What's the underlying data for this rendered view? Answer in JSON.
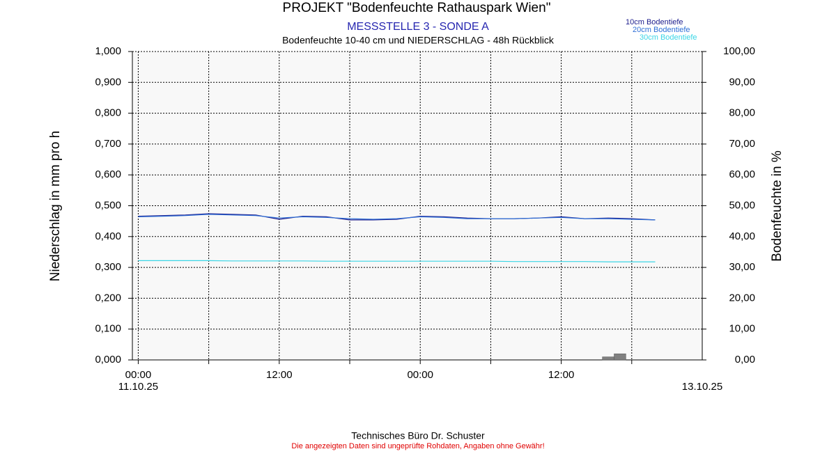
{
  "chart_data": {
    "type": "line",
    "title": "PROJEKT \"Bodenfeuchte Rathauspark Wien\"",
    "subtitle": "MESSSTELLE 3 - SONDE A",
    "description": "Bodenfeuchte 10-40 cm und NIEDERSCHLAG - 48h Rückblick",
    "ylabel": "Niederschlag in mm pro h",
    "y2label": "Bodenfeuchte in %",
    "footer": "Technisches Büro Dr. Schuster",
    "disclaimer": "Die angezeigten Daten sind ungeprüfte Rohdaten, Angaben ohne Gewähr!",
    "xlim": [
      -0.5,
      48
    ],
    "xticks": [
      {
        "value": 0,
        "label": "00:00"
      },
      {
        "value": 12,
        "label": "12:00"
      },
      {
        "value": 24,
        "label": "00:00"
      },
      {
        "value": 36,
        "label": "12:00"
      }
    ],
    "xminor": [
      6,
      18,
      30,
      42
    ],
    "date_labels": [
      {
        "value": 0,
        "label": "11.10.25"
      },
      {
        "value": 48,
        "label": "13.10.25"
      }
    ],
    "ylim": [
      0,
      1
    ],
    "yticks": [
      {
        "value": 0,
        "label": "0,000"
      },
      {
        "value": 0.1,
        "label": "0,100"
      },
      {
        "value": 0.2,
        "label": "0,200"
      },
      {
        "value": 0.3,
        "label": "0,300"
      },
      {
        "value": 0.4,
        "label": "0,400"
      },
      {
        "value": 0.5,
        "label": "0,500"
      },
      {
        "value": 0.6,
        "label": "0,600"
      },
      {
        "value": 0.7,
        "label": "0,700"
      },
      {
        "value": 0.8,
        "label": "0,800"
      },
      {
        "value": 0.9,
        "label": "0,900"
      },
      {
        "value": 1,
        "label": "1,000"
      }
    ],
    "y2lim": [
      0,
      100
    ],
    "y2ticks": [
      {
        "value": 0,
        "label": "0,00"
      },
      {
        "value": 10,
        "label": "10,00"
      },
      {
        "value": 20,
        "label": "20,00"
      },
      {
        "value": 30,
        "label": "30,00"
      },
      {
        "value": 40,
        "label": "40,00"
      },
      {
        "value": 50,
        "label": "50,00"
      },
      {
        "value": 60,
        "label": "60,00"
      },
      {
        "value": 70,
        "label": "70,00"
      },
      {
        "value": 80,
        "label": "80,00"
      },
      {
        "value": 90,
        "label": "90,00"
      },
      {
        "value": 100,
        "label": "100,00"
      }
    ],
    "grid": true,
    "legend": "top-right",
    "x": [
      0,
      2,
      4,
      6,
      8,
      10,
      12,
      14,
      16,
      18,
      20,
      22,
      24,
      26,
      28,
      30,
      32,
      34,
      36,
      38,
      40,
      42,
      44
    ],
    "series": [
      {
        "name": "10cm Bodentiefe",
        "color": "#1c1c8c",
        "axis": "y2",
        "values": [
          46.6,
          46.8,
          47.0,
          47.4,
          47.2,
          47.0,
          45.6,
          46.6,
          46.4,
          45.4,
          45.4,
          45.6,
          46.6,
          46.4,
          46.0,
          45.8,
          45.8,
          46.0,
          46.4,
          45.8,
          46.0,
          45.8,
          45.4
        ]
      },
      {
        "name": "20cm Bodentiefe",
        "color": "#2f6fd6",
        "axis": "y2",
        "values": [
          46.4,
          46.6,
          46.8,
          47.2,
          47.0,
          46.8,
          46.0,
          46.4,
          46.2,
          45.8,
          45.6,
          45.8,
          46.4,
          46.2,
          45.8,
          45.8,
          45.8,
          46.0,
          46.2,
          45.8,
          45.8,
          45.6,
          45.4
        ]
      },
      {
        "name": "30cm Bodentiefe",
        "color": "#3ad6e6",
        "axis": "y2",
        "values": [
          32.2,
          32.2,
          32.2,
          32.2,
          32.1,
          32.1,
          32.1,
          32.1,
          32.0,
          32.0,
          32.0,
          32.0,
          32.0,
          32.0,
          32.0,
          32.0,
          31.9,
          31.9,
          31.9,
          31.9,
          31.8,
          31.8,
          31.8
        ]
      }
    ],
    "rain": {
      "type": "bar",
      "color": "#808080",
      "bins": [
        39.5,
        40.5,
        41.5
      ],
      "values": [
        0.01,
        0.02
      ]
    }
  }
}
